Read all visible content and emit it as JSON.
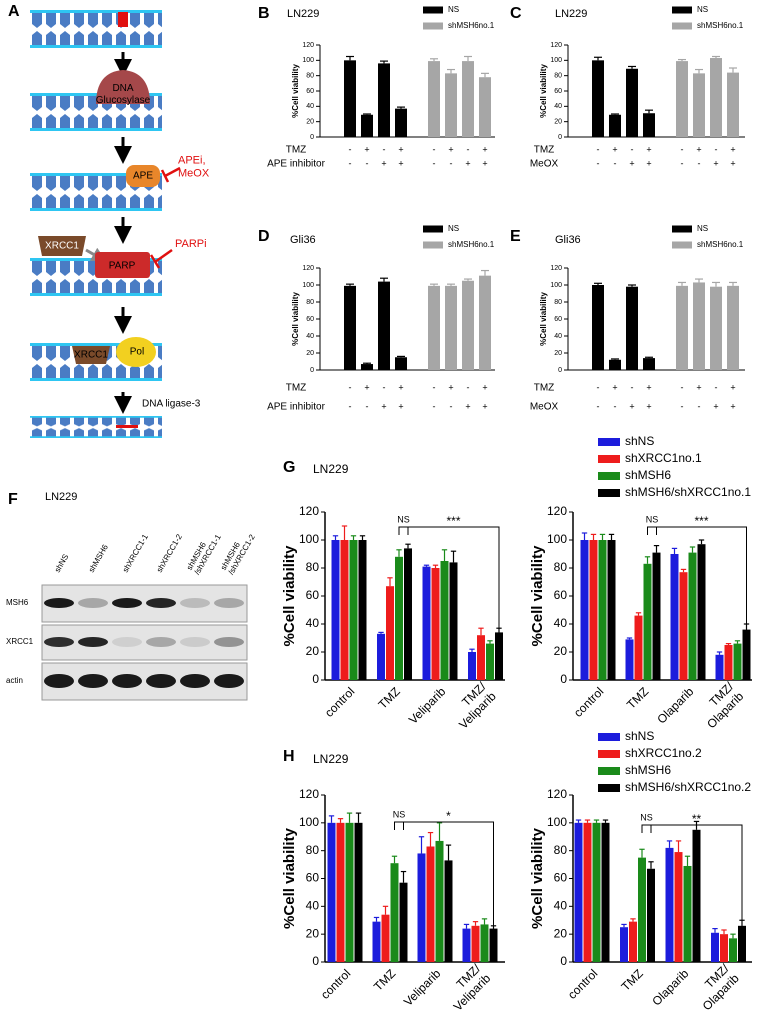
{
  "panel_a": {
    "label": "A",
    "labels": {
      "glycosylase": [
        "DNA",
        "Glucosylase"
      ],
      "ape": "APE",
      "ape_inhibitors": [
        "APEi,",
        "MeOX"
      ],
      "xrcc1": "XRCC1",
      "parp": "PARP",
      "parp_inhibitor": "PARPi",
      "xrcc1_pol": "XRCC1",
      "pol": "Pol",
      "ligase": "DNA ligase-3"
    }
  },
  "panel_f": {
    "label": "F",
    "title": "LN229",
    "lanes": [
      "shNS",
      "shMSH6",
      "shXRCC1-1",
      "shXRCC1-2",
      [
        "shMSH6",
        "/shXRCC1-1"
      ],
      [
        "shMSH6",
        "/shXRCC1-2"
      ]
    ],
    "rows": [
      "MSH6",
      "XRCC1",
      "actin"
    ]
  },
  "chart_data": [
    {
      "label": "B",
      "type": "bar",
      "title": "LN229",
      "ylabel": "%Cell viability",
      "categories": [
        null,
        null,
        null,
        null,
        null,
        null,
        null,
        null
      ],
      "conditions": [
        {
          "name": "TMZ",
          "signs": [
            "-",
            "+",
            "-",
            "+",
            "-",
            "+",
            "-",
            "+"
          ]
        },
        {
          "name": "APE inhibitor",
          "signs": [
            "-",
            "-",
            "+",
            "+",
            "-",
            "-",
            "+",
            "+"
          ]
        }
      ],
      "series": [
        {
          "name": "NS",
          "color": "#000000",
          "values": [
            100,
            29,
            96,
            37,
            null,
            null,
            null,
            null
          ],
          "errors": [
            5,
            1,
            3,
            2,
            null,
            null,
            null,
            null
          ]
        },
        {
          "name": "shMSH6no.1",
          "color": "#a6a6a6",
          "values": [
            null,
            null,
            null,
            null,
            99,
            83,
            99,
            78
          ],
          "errors": [
            null,
            null,
            null,
            null,
            3,
            5,
            6,
            5
          ]
        }
      ],
      "ylim": [
        0,
        120
      ],
      "yticks": [
        0,
        20,
        40,
        60,
        80,
        100,
        120
      ],
      "legend": "upper right"
    },
    {
      "label": "C",
      "type": "bar",
      "title": "LN229",
      "ylabel": "%Cell viability",
      "categories": [
        null,
        null,
        null,
        null,
        null,
        null,
        null,
        null
      ],
      "conditions": [
        {
          "name": "TMZ",
          "signs": [
            "-",
            "+",
            "-",
            "+",
            "-",
            "+",
            "-",
            "+"
          ]
        },
        {
          "name": "MeOX",
          "signs": [
            "-",
            "-",
            "+",
            "+",
            "-",
            "-",
            "+",
            "+"
          ]
        }
      ],
      "series": [
        {
          "name": "NS",
          "color": "#000000",
          "values": [
            100,
            29,
            89,
            31,
            null,
            null,
            null,
            null
          ],
          "errors": [
            4,
            1,
            3,
            4,
            null,
            null,
            null,
            null
          ]
        },
        {
          "name": "shMSH6no.1",
          "color": "#a6a6a6",
          "values": [
            null,
            null,
            null,
            null,
            99,
            83,
            103,
            84
          ],
          "errors": [
            null,
            null,
            null,
            null,
            2,
            5,
            2,
            6
          ]
        }
      ],
      "ylim": [
        0,
        120
      ],
      "yticks": [
        0,
        20,
        40,
        60,
        80,
        100,
        120
      ],
      "legend": "upper right"
    },
    {
      "label": "D",
      "type": "bar",
      "title": "Gli36",
      "ylabel": "%Cell viability",
      "categories": [
        null,
        null,
        null,
        null,
        null,
        null,
        null,
        null
      ],
      "conditions": [
        {
          "name": "TMZ",
          "signs": [
            "-",
            "+",
            "-",
            "+",
            "-",
            "+",
            "-",
            "+"
          ]
        },
        {
          "name": "APE inhibitor",
          "signs": [
            "-",
            "-",
            "+",
            "+",
            "-",
            "-",
            "+",
            "+"
          ]
        }
      ],
      "series": [
        {
          "name": "NS",
          "color": "#000000",
          "values": [
            99,
            7,
            104,
            15,
            null,
            null,
            null,
            null
          ],
          "errors": [
            2,
            1,
            4,
            1,
            null,
            null,
            null,
            null
          ]
        },
        {
          "name": "shMSH6no.1",
          "color": "#a6a6a6",
          "values": [
            null,
            null,
            null,
            null,
            99,
            99,
            105,
            111
          ],
          "errors": [
            null,
            null,
            null,
            null,
            2,
            2,
            2,
            6
          ]
        }
      ],
      "ylim": [
        0,
        120
      ],
      "yticks": [
        0,
        20,
        40,
        60,
        80,
        100,
        120
      ],
      "legend": "upper right"
    },
    {
      "label": "E",
      "type": "bar",
      "title": "Gli36",
      "ylabel": "%Cell viability",
      "categories": [
        null,
        null,
        null,
        null,
        null,
        null,
        null,
        null
      ],
      "conditions": [
        {
          "name": "TMZ",
          "signs": [
            "-",
            "+",
            "-",
            "+",
            "-",
            "+",
            "-",
            "+"
          ]
        },
        {
          "name": "MeOX",
          "signs": [
            "-",
            "-",
            "+",
            "+",
            "-",
            "-",
            "+",
            "+"
          ]
        }
      ],
      "series": [
        {
          "name": "NS",
          "color": "#000000",
          "values": [
            100,
            12,
            98,
            14,
            null,
            null,
            null,
            null
          ],
          "errors": [
            2,
            1,
            2,
            1,
            null,
            null,
            null,
            null
          ]
        },
        {
          "name": "shMSH6no.1",
          "color": "#a6a6a6",
          "values": [
            null,
            null,
            null,
            null,
            99,
            103,
            98,
            99
          ],
          "errors": [
            null,
            null,
            null,
            null,
            4,
            4,
            5,
            4
          ]
        }
      ],
      "ylim": [
        0,
        120
      ],
      "yticks": [
        0,
        20,
        40,
        60,
        80,
        100,
        120
      ],
      "legend": "upper right"
    },
    {
      "label": "G",
      "type": "bar",
      "title": "LN229",
      "ylabel": "%Cell viability",
      "categories": [
        "control",
        "TMZ",
        "Veliparib",
        [
          "TMZ/",
          "Veliparib"
        ]
      ],
      "series": [
        {
          "color": "#1c1cdc",
          "values": [
            100,
            33,
            81,
            20
          ],
          "errors": [
            3,
            1,
            1,
            2
          ]
        },
        {
          "color": "#ee1c1c",
          "values": [
            100,
            67,
            80,
            32
          ],
          "errors": [
            10,
            6,
            2,
            5
          ]
        },
        {
          "color": "#1a8a1a",
          "values": [
            100,
            88,
            85,
            26
          ],
          "errors": [
            3,
            5,
            8,
            2
          ]
        },
        {
          "color": "#000000",
          "values": [
            100,
            94,
            84,
            34
          ],
          "errors": [
            3,
            3,
            8,
            3
          ]
        }
      ],
      "ylim": [
        0,
        120
      ],
      "yticks": [
        0,
        20,
        40,
        60,
        80,
        100,
        120
      ],
      "annotations": [
        "NS",
        "***"
      ]
    },
    {
      "type": "bar",
      "ylabel": "%Cell viability",
      "categories": [
        "control",
        "TMZ",
        "Olaparib",
        [
          "TMZ/",
          "Olaparib"
        ]
      ],
      "series": [
        {
          "name": "shNS",
          "color": "#1c1cdc",
          "values": [
            100,
            29,
            90,
            18
          ],
          "errors": [
            5,
            1,
            4,
            2
          ]
        },
        {
          "name": "shXRCC1no.1",
          "color": "#ee1c1c",
          "values": [
            100,
            46,
            77,
            25
          ],
          "errors": [
            4,
            2,
            2,
            1
          ]
        },
        {
          "name": "shMSH6",
          "color": "#1a8a1a",
          "values": [
            100,
            83,
            91,
            26
          ],
          "errors": [
            4,
            5,
            4,
            2
          ]
        },
        {
          "name": "shMSH6/shXRCC1no.1",
          "color": "#000000",
          "values": [
            100,
            91,
            97,
            36
          ],
          "errors": [
            4,
            5,
            3,
            4
          ]
        }
      ],
      "ylim": [
        0,
        120
      ],
      "yticks": [
        0,
        20,
        40,
        60,
        80,
        100,
        120
      ],
      "legend": "above",
      "annotations": [
        "NS",
        "***"
      ]
    },
    {
      "label": "H",
      "type": "bar",
      "title": "LN229",
      "ylabel": "%Cell viability",
      "categories": [
        "control",
        "TMZ",
        "Veliparib",
        [
          "TMZ/",
          "Veliparib"
        ]
      ],
      "series": [
        {
          "color": "#1c1cdc",
          "values": [
            100,
            29,
            78,
            24
          ],
          "errors": [
            5,
            3,
            12,
            3
          ]
        },
        {
          "color": "#ee1c1c",
          "values": [
            100,
            34,
            83,
            26
          ],
          "errors": [
            3,
            6,
            10,
            3
          ]
        },
        {
          "color": "#1a8a1a",
          "values": [
            100,
            71,
            87,
            27
          ],
          "errors": [
            7,
            5,
            13,
            4
          ]
        },
        {
          "color": "#000000",
          "values": [
            100,
            57,
            73,
            24
          ],
          "errors": [
            7,
            8,
            11,
            2
          ]
        }
      ],
      "ylim": [
        0,
        120
      ],
      "yticks": [
        0,
        20,
        40,
        60,
        80,
        100,
        120
      ],
      "annotations": [
        "NS",
        "*"
      ]
    },
    {
      "type": "bar",
      "ylabel": "%Cell viability",
      "categories": [
        "control",
        "TMZ",
        "Olaparib",
        [
          "TMZ/",
          "Olaparib"
        ]
      ],
      "series": [
        {
          "name": "shNS",
          "color": "#1c1cdc",
          "values": [
            100,
            25,
            82,
            21
          ],
          "errors": [
            2,
            2,
            5,
            3
          ]
        },
        {
          "name": "shXRCC1no.2",
          "color": "#ee1c1c",
          "values": [
            100,
            29,
            79,
            20
          ],
          "errors": [
            2,
            2,
            8,
            3
          ]
        },
        {
          "name": "shMSH6",
          "color": "#1a8a1a",
          "values": [
            100,
            75,
            69,
            17
          ],
          "errors": [
            2,
            6,
            7,
            3
          ]
        },
        {
          "name": "shMSH6/shXRCC1no.2",
          "color": "#000000",
          "values": [
            100,
            67,
            95,
            26
          ],
          "errors": [
            2,
            5,
            6,
            4
          ]
        }
      ],
      "ylim": [
        0,
        120
      ],
      "yticks": [
        0,
        20,
        40,
        60,
        80,
        100,
        120
      ],
      "legend": "above",
      "annotations": [
        "NS",
        "**"
      ]
    }
  ]
}
